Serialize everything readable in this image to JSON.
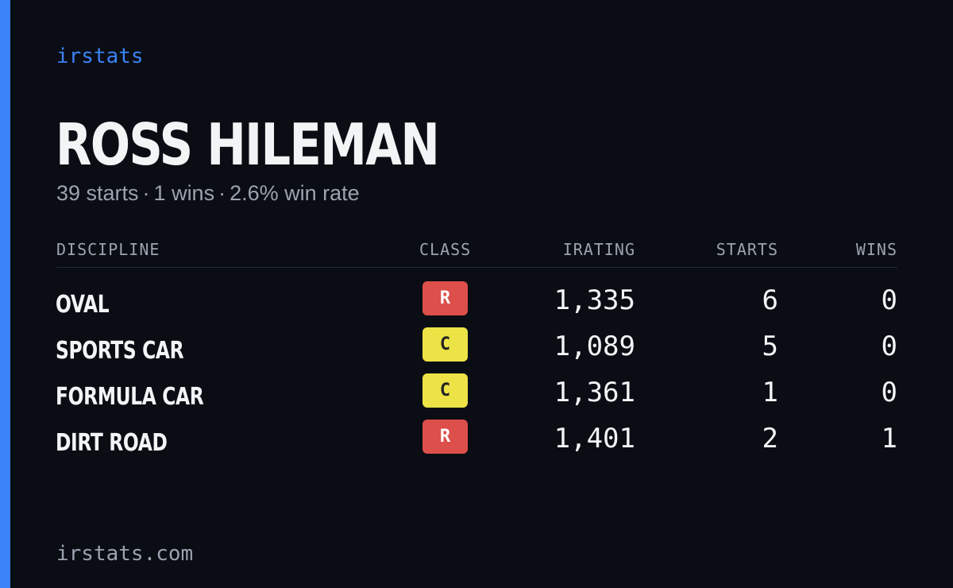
{
  "brand": "irstats",
  "driver": {
    "name": "ROSS HILEMAN",
    "starts_text": "39 starts",
    "wins_text": "1 wins",
    "win_rate_text": "2.6% win rate",
    "separator": "·"
  },
  "columns": {
    "discipline": "DISCIPLINE",
    "class": "CLASS",
    "irating": "IRATING",
    "starts": "STARTS",
    "wins": "WINS"
  },
  "rows": [
    {
      "discipline": "OVAL",
      "class": "R",
      "class_color": "#dc4f4a",
      "class_text_color": "#ffffff",
      "irating": "1,335",
      "starts": "6",
      "wins": "0"
    },
    {
      "discipline": "SPORTS CAR",
      "class": "C",
      "class_color": "#ede346",
      "class_text_color": "#222222",
      "irating": "1,089",
      "starts": "5",
      "wins": "0"
    },
    {
      "discipline": "FORMULA CAR",
      "class": "C",
      "class_color": "#ede346",
      "class_text_color": "#222222",
      "irating": "1,361",
      "starts": "1",
      "wins": "0"
    },
    {
      "discipline": "DIRT ROAD",
      "class": "R",
      "class_color": "#dc4f4a",
      "class_text_color": "#ffffff",
      "irating": "1,401",
      "starts": "2",
      "wins": "1"
    }
  ],
  "footer": "irstats.com",
  "colors": {
    "background": "#0a0d14",
    "accent": "#3b82f6",
    "text_primary": "#f3f4f6",
    "text_muted": "#9ca3af"
  }
}
